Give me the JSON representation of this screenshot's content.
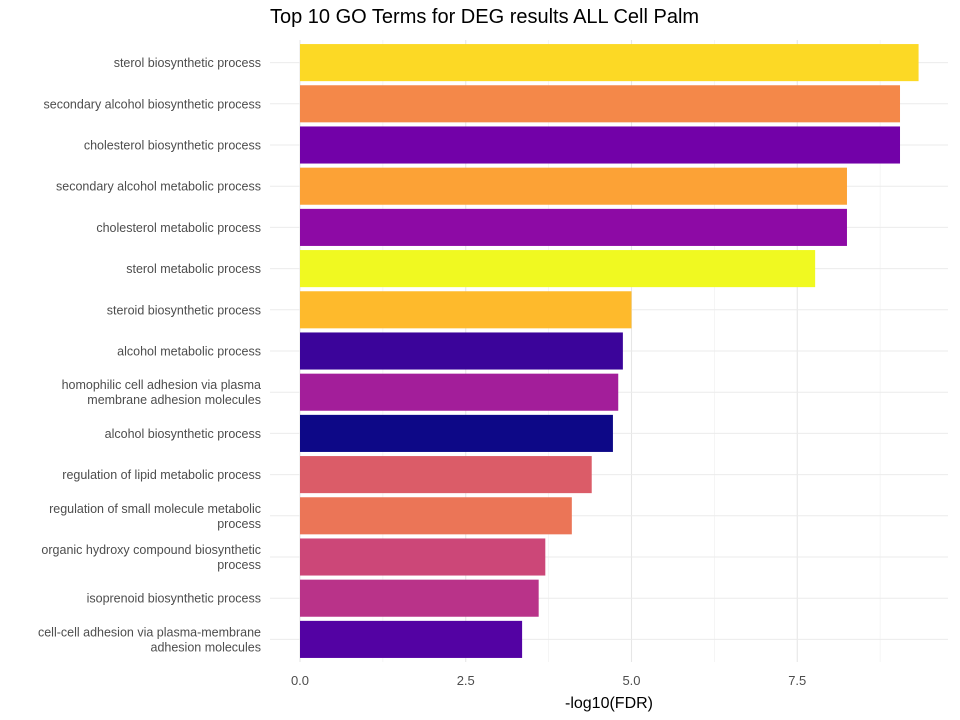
{
  "chart_data": {
    "type": "bar",
    "orientation": "horizontal",
    "title": "Top 10 GO Terms for DEG results ALL Cell Palm",
    "xlabel": "-log10(FDR)",
    "ylabel": "",
    "xlim": [
      0,
      9.5
    ],
    "xticks": [
      "0.0",
      "2.5",
      "5.0",
      "7.5"
    ],
    "grid": true,
    "legend": "none",
    "categories": [
      [
        "sterol biosynthetic process"
      ],
      [
        "secondary alcohol biosynthetic process"
      ],
      [
        "cholesterol biosynthetic process"
      ],
      [
        "secondary alcohol metabolic process"
      ],
      [
        "cholesterol metabolic process"
      ],
      [
        "sterol metabolic process"
      ],
      [
        "steroid biosynthetic process"
      ],
      [
        "alcohol metabolic process"
      ],
      [
        "homophilic cell adhesion via plasma",
        "membrane adhesion molecules"
      ],
      [
        "alcohol biosynthetic process"
      ],
      [
        "regulation of lipid metabolic process"
      ],
      [
        "regulation of small molecule metabolic",
        "process"
      ],
      [
        "organic hydroxy compound biosynthetic",
        "process"
      ],
      [
        "isoprenoid biosynthetic process"
      ],
      [
        "cell-cell adhesion via plasma-membrane",
        "adhesion molecules"
      ]
    ],
    "values": [
      9.33,
      9.05,
      9.05,
      8.25,
      8.25,
      7.77,
      5.0,
      4.87,
      4.8,
      4.72,
      4.4,
      4.1,
      3.7,
      3.6,
      3.35
    ],
    "colors": [
      "#FCD925",
      "#F48849",
      "#7201A8",
      "#FCA236",
      "#8D0AA5",
      "#F0F921",
      "#FEBA2C",
      "#3B049A",
      "#A31E9A",
      "#0D0887",
      "#DB5C68",
      "#EB7557",
      "#CC4778",
      "#B93389",
      "#5302A3"
    ]
  }
}
